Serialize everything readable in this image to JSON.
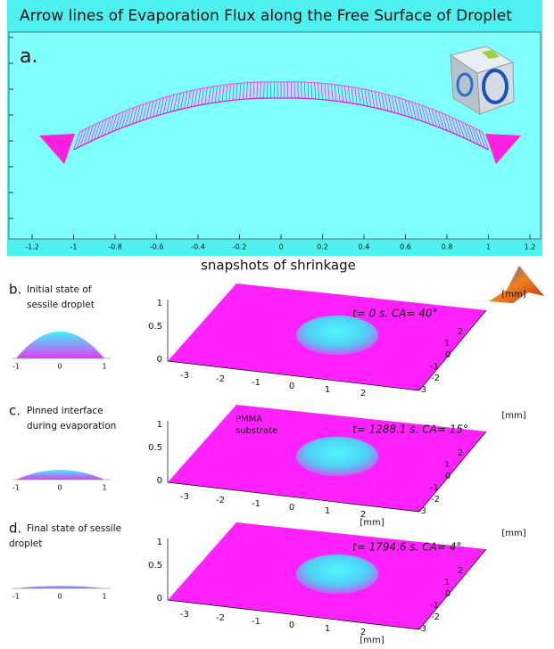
{
  "panel_a": {
    "title": "Arrow lines of Evaporation Flux along the Free Surface of Droplet",
    "label": "a.",
    "xticks": [
      "-1.2",
      "-1",
      "-0.8",
      "-0.6",
      "-0.4",
      "-0.2",
      "0",
      "0.2",
      "0.4",
      "0.6",
      "0.8",
      "1",
      "1.2"
    ]
  },
  "section_title": "snapshots of shrinkage",
  "substrate_label": [
    "PMMA",
    "substrate"
  ],
  "rows": [
    {
      "label": "b.",
      "caption": [
        "Initial state of",
        "sessile droplet"
      ],
      "profile_ticks": [
        "-1",
        "0",
        "1"
      ],
      "annotation": "t= 0 s. CA= 40°",
      "zticks": [
        "1",
        "0.5",
        "0"
      ],
      "xticks": [
        "-3",
        "-2",
        "-1",
        "0",
        "1",
        "2"
      ],
      "yticks": [
        "2",
        "1",
        "0",
        "-1",
        "-2",
        "-3"
      ],
      "y_unit": "[mm]"
    },
    {
      "label": "c.",
      "caption": [
        "Pinned interface",
        "during evaporation"
      ],
      "profile_ticks": [
        "-1",
        "0",
        "1"
      ],
      "annotation": "t= 1288.1 s. CA= 15°",
      "zticks": [
        "1",
        "0.5",
        "0"
      ],
      "xticks": [
        "-3",
        "-2",
        "-1",
        "0",
        "1",
        "2"
      ],
      "x_unit": "[mm]",
      "yticks": [
        "2",
        "1",
        "0",
        "-1",
        "-2",
        "-3"
      ],
      "y_unit": "[mm]"
    },
    {
      "label": "d.",
      "caption": [
        "Final state of sessile",
        "droplet"
      ],
      "profile_ticks": [
        "-1",
        "0",
        "1"
      ],
      "annotation": "t= 1794.6 s. CA= 4°",
      "zticks": [
        "1",
        "0.5",
        "0"
      ],
      "xticks": [
        "-3",
        "-2",
        "-1",
        "0",
        "1",
        "2"
      ],
      "x_unit": "[mm]",
      "yticks": [
        "2",
        "1",
        "0",
        "-1",
        "-2",
        "-3"
      ],
      "y_unit": "[mm]"
    }
  ]
}
